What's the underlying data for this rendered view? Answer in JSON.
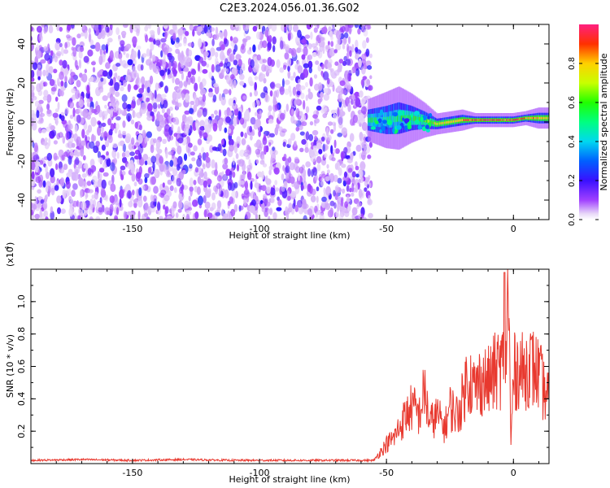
{
  "title": "C2E3.2024.056.01.36.G02",
  "chart_data": [
    {
      "type": "heatmap",
      "xlabel": "Height of straight line (km)",
      "ylabel": "Frequency (Hz)",
      "xlim": [
        -190,
        14
      ],
      "ylim": [
        -50,
        50
      ],
      "xticks": [
        -150,
        -100,
        -50,
        0
      ],
      "yticks": [
        -40,
        -20,
        0,
        20,
        40
      ],
      "colorbar": {
        "label": "Normalized spectral amplitude",
        "range": [
          0,
          1
        ],
        "ticks": [
          "0.0",
          "0.2",
          "0.4",
          "0.6",
          "0.8"
        ],
        "tick_values": [
          0,
          0.2,
          0.4,
          0.6,
          0.8
        ]
      },
      "noise_region": {
        "x_start": -190,
        "x_end": -56,
        "y_range": [
          -50,
          50
        ],
        "amplitude": "low (0.05-0.25)"
      },
      "signal_band": [
        {
          "x": -57,
          "center_hz": 1,
          "width_hz": 6,
          "amplitude": 0.5
        },
        {
          "x": -50,
          "center_hz": 1,
          "width_hz": 8,
          "amplitude": 0.45
        },
        {
          "x": -45,
          "center_hz": 2,
          "width_hz": 9,
          "amplitude": 0.5
        },
        {
          "x": -40,
          "center_hz": 2,
          "width_hz": 7,
          "amplitude": 0.55
        },
        {
          "x": -35,
          "center_hz": 1,
          "width_hz": 5,
          "amplitude": 0.6
        },
        {
          "x": -30,
          "center_hz": -1,
          "width_hz": 3,
          "amplitude": 0.7
        },
        {
          "x": -25,
          "center_hz": 0,
          "width_hz": 3,
          "amplitude": 0.75
        },
        {
          "x": -20,
          "center_hz": 1,
          "width_hz": 3,
          "amplitude": 0.8
        },
        {
          "x": -15,
          "center_hz": 1,
          "width_hz": 2,
          "amplitude": 0.9
        },
        {
          "x": -10,
          "center_hz": 1,
          "width_hz": 2,
          "amplitude": 0.95
        },
        {
          "x": -5,
          "center_hz": 1,
          "width_hz": 2,
          "amplitude": 0.85
        },
        {
          "x": 0,
          "center_hz": 1,
          "width_hz": 2,
          "amplitude": 0.9
        },
        {
          "x": 5,
          "center_hz": 2,
          "width_hz": 2,
          "amplitude": 0.85
        },
        {
          "x": 10,
          "center_hz": 2,
          "width_hz": 3,
          "amplitude": 0.8
        },
        {
          "x": 14,
          "center_hz": 2,
          "width_hz": 3,
          "amplitude": 0.75
        }
      ]
    },
    {
      "type": "line",
      "xlabel": "Height of straight line (km)",
      "ylabel": "SNR (10 * v/v)",
      "y_scale_label": "(x10",
      "y_scale_exponent": "4",
      "xlim": [
        -190,
        14
      ],
      "ylim": [
        0,
        1.2
      ],
      "xticks": [
        -150,
        -100,
        -50,
        0
      ],
      "yticks": [
        "0.2",
        "0.4",
        "0.6",
        "0.8",
        "1.0"
      ],
      "ytick_values": [
        0.2,
        0.4,
        0.6,
        0.8,
        1.0
      ],
      "color": "#e8392f",
      "series": [
        {
          "x": [
            -190,
            -170,
            -150,
            -130,
            -110,
            -90,
            -70,
            -55,
            -52,
            -50,
            -47,
            -45,
            -43,
            -40,
            -37,
            -35,
            -33,
            -30,
            -27,
            -25,
            -22,
            -20,
            -18,
            -15,
            -13,
            -10,
            -8,
            -6,
            -4,
            -3,
            -2,
            -1,
            0,
            2,
            4,
            6,
            8,
            10,
            12,
            14
          ],
          "y": [
            0.02,
            0.025,
            0.02,
            0.025,
            0.02,
            0.02,
            0.02,
            0.02,
            0.08,
            0.12,
            0.16,
            0.22,
            0.28,
            0.35,
            0.3,
            0.45,
            0.25,
            0.3,
            0.22,
            0.35,
            0.3,
            0.4,
            0.55,
            0.45,
            0.52,
            0.5,
            0.55,
            0.58,
            0.62,
            0.65,
            1.18,
            0.1,
            0.55,
            0.6,
            0.55,
            0.62,
            0.58,
            0.55,
            0.45,
            0.4
          ]
        }
      ]
    }
  ]
}
